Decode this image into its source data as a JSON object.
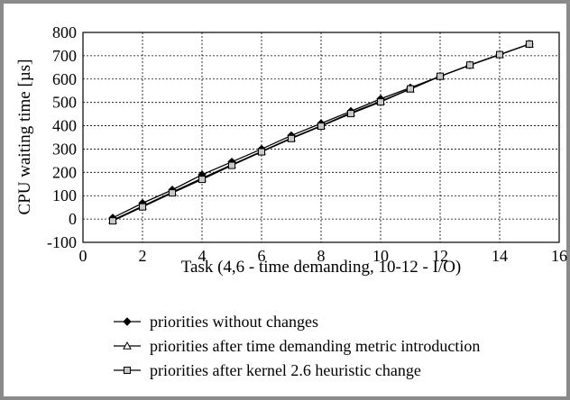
{
  "chart_data": {
    "type": "line",
    "xlabel": "Task (4,6 - time demanding, 10-12 - I/O)",
    "ylabel": "CPU waiting time [µs]",
    "xlim": [
      0,
      16
    ],
    "ylim": [
      -100,
      800
    ],
    "xticks": [
      0,
      2,
      4,
      6,
      8,
      10,
      12,
      14,
      16
    ],
    "yticks": [
      -100,
      0,
      100,
      200,
      300,
      400,
      500,
      600,
      700,
      800
    ],
    "grid": true,
    "legend_position": "bottom",
    "x": [
      1,
      2,
      3,
      4,
      5,
      6,
      7,
      8,
      9,
      10,
      11,
      12,
      13,
      14,
      15
    ],
    "series": [
      {
        "name": "priorities without changes",
        "marker": "diamond",
        "values": [
          5,
          68,
          125,
          190,
          245,
          300,
          358,
          410,
          462,
          515,
          563,
          612,
          660,
          705,
          750
        ]
      },
      {
        "name": "priorities after time demanding metric introduction",
        "marker": "triangle",
        "values": [
          -5,
          55,
          115,
          175,
          233,
          290,
          347,
          400,
          455,
          505,
          557,
          612,
          660,
          705,
          750
        ]
      },
      {
        "name": "priorities after kernel 2.6 heuristic change",
        "marker": "square",
        "values": [
          -8,
          52,
          112,
          170,
          230,
          288,
          345,
          398,
          452,
          502,
          558,
          612,
          660,
          705,
          750
        ]
      }
    ]
  }
}
